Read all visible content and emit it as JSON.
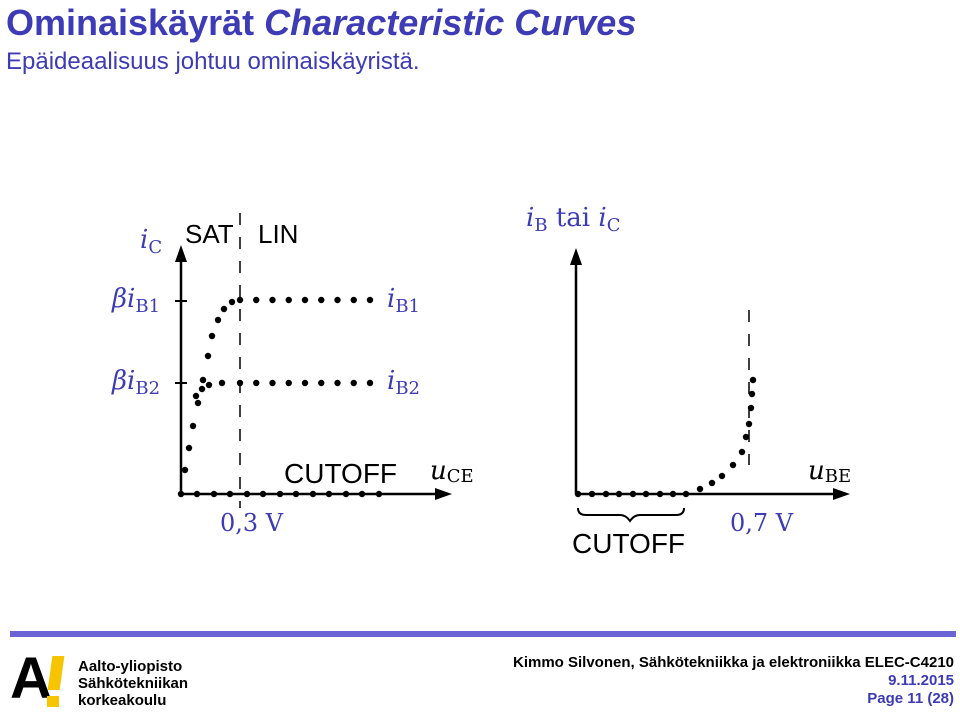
{
  "slide": {
    "title_fi": "Ominaiskäyrät",
    "title_en": "Characteristic Curves",
    "subtitle": "Epäideaalisuus johtuu ominaiskäyristä."
  },
  "left_graph": {
    "y_axis_label": {
      "main": "i",
      "sub": "C"
    },
    "region_sat": "SAT",
    "region_lin": "LIN",
    "tick_b1": {
      "prefix": "βi",
      "sub": "B1"
    },
    "tick_b2": {
      "prefix": "βi",
      "sub": "B2"
    },
    "curve_b1_label": {
      "main": "i",
      "sub": "B1"
    },
    "curve_b2_label": {
      "main": "i",
      "sub": "B2"
    },
    "region_cutoff": "CUTOFF",
    "x_axis_label": {
      "main": "u",
      "sub": "CE"
    },
    "x_marker": "0,3 V"
  },
  "right_graph": {
    "y_axis_label": {
      "a": "i",
      "a_sub": "B",
      "mid": " tai ",
      "b": "i",
      "b_sub": "C"
    },
    "x_axis_label": {
      "main": "u",
      "sub": "BE"
    },
    "cutoff_label": "CUTOFF",
    "x_marker": "0,7 V"
  },
  "colors": {
    "accent": "#3d3bb5",
    "footer_bar": "#6b63d4",
    "logo_yellow": "#f6c400",
    "ink": "#000000"
  },
  "footer": {
    "logo_lines": [
      "Aalto-yliopisto",
      "Sähkötekniikan",
      "korkeakoulu"
    ],
    "author": "Kimmo Silvonen, Sähkötekniikka ja elektroniikka ELEC-C4210",
    "date": "9.11.2015",
    "page": "Page 11 (28)"
  }
}
